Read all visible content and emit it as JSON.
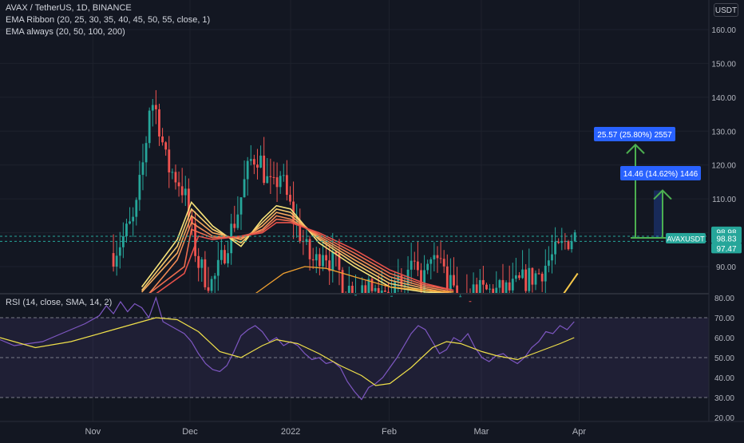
{
  "header": {
    "symbol_line": "AVAX / TetherUS, 1D, BINANCE",
    "indicator_1": "EMA Ribbon (20, 25, 30, 35, 40, 45, 50, 55, close, 1)",
    "indicator_2": "EMA always (20, 50, 100, 200)",
    "currency_button": "USDT"
  },
  "rsi_panel": {
    "label": "RSI (14, close, SMA, 14, 2)"
  },
  "colors": {
    "background": "#131722",
    "up": "#26a69a",
    "down": "#ef5350",
    "rsi": "#7e57c2",
    "rsi_ma": "#f0e04a",
    "measure_arrow": "#4caf50",
    "measure_label": "#2962ff"
  },
  "annotations": {
    "measure_long": "25.57 (25.80%) 2557",
    "measure_short": "14.46 (14.62%) 1446"
  },
  "price_labels": {
    "high_tag": "98.98",
    "symbol_tag": "AVAXUSDT",
    "last_tag": "98.83",
    "low_tag": "97.47"
  },
  "chart_data": [
    {
      "type": "candlestick",
      "y_ticks": [
        "160.00",
        "150.00",
        "140.00",
        "130.00",
        "120.00",
        "110.00",
        "100.00",
        "90.00"
      ],
      "ylim": [
        82,
        164
      ],
      "x_ticks": [
        "Nov",
        "Dec",
        "2022",
        "Feb",
        "Mar",
        "Apr"
      ],
      "x_tick_positions": [
        0.131,
        0.268,
        0.41,
        0.549,
        0.679,
        0.817
      ],
      "price_path": [
        [
          0.0,
          88
        ],
        [
          0.16,
          94
        ],
        [
          0.19,
          104
        ],
        [
          0.205,
          125
        ],
        [
          0.212,
          140
        ],
        [
          0.222,
          135
        ],
        [
          0.235,
          120
        ],
        [
          0.25,
          116
        ],
        [
          0.26,
          112
        ],
        [
          0.27,
          100
        ],
        [
          0.28,
          91
        ],
        [
          0.29,
          87
        ],
        [
          0.3,
          85
        ],
        [
          0.31,
          90
        ],
        [
          0.32,
          97
        ],
        [
          0.335,
          106
        ],
        [
          0.345,
          115
        ],
        [
          0.355,
          122
        ],
        [
          0.365,
          123
        ],
        [
          0.375,
          116
        ],
        [
          0.385,
          112
        ],
        [
          0.395,
          118
        ],
        [
          0.405,
          110
        ],
        [
          0.415,
          104
        ],
        [
          0.425,
          99
        ],
        [
          0.435,
          93
        ],
        [
          0.445,
          91
        ],
        [
          0.455,
          96
        ],
        [
          0.465,
          92
        ],
        [
          0.475,
          90
        ],
        [
          0.485,
          85
        ],
        [
          0.495,
          83
        ],
        [
          0.5,
          82
        ],
        [
          0.57,
          84
        ],
        [
          0.58,
          90
        ],
        [
          0.59,
          85
        ],
        [
          0.62,
          93
        ],
        [
          0.63,
          86
        ],
        [
          0.64,
          83
        ],
        [
          0.65,
          82
        ],
        [
          0.72,
          83
        ],
        [
          0.74,
          86
        ],
        [
          0.76,
          88
        ],
        [
          0.775,
          92
        ],
        [
          0.79,
          95
        ],
        [
          0.8,
          98
        ],
        [
          0.81,
          99
        ]
      ],
      "ema_ribbon_bands": [
        [
          [
            0.2,
            84
          ],
          [
            0.25,
            98
          ],
          [
            0.27,
            109
          ],
          [
            0.3,
            102
          ],
          [
            0.34,
            96
          ],
          [
            0.37,
            104
          ],
          [
            0.39,
            108
          ],
          [
            0.41,
            107
          ],
          [
            0.45,
            97
          ],
          [
            0.5,
            90
          ],
          [
            0.55,
            84
          ],
          [
            0.6,
            82.5
          ],
          [
            0.64,
            82
          ]
        ],
        [
          [
            0.2,
            83
          ],
          [
            0.25,
            96
          ],
          [
            0.27,
            107
          ],
          [
            0.3,
            101
          ],
          [
            0.34,
            97
          ],
          [
            0.37,
            103
          ],
          [
            0.39,
            107
          ],
          [
            0.41,
            106
          ],
          [
            0.45,
            98
          ],
          [
            0.5,
            91
          ],
          [
            0.55,
            85
          ],
          [
            0.6,
            83
          ],
          [
            0.64,
            82
          ]
        ],
        [
          [
            0.2,
            82.5
          ],
          [
            0.25,
            94
          ],
          [
            0.27,
            105
          ],
          [
            0.3,
            100
          ],
          [
            0.34,
            98
          ],
          [
            0.37,
            102
          ],
          [
            0.39,
            106
          ],
          [
            0.41,
            105
          ],
          [
            0.45,
            98.5
          ],
          [
            0.5,
            92
          ],
          [
            0.55,
            86
          ],
          [
            0.6,
            83.5
          ],
          [
            0.64,
            82
          ]
        ],
        [
          [
            0.21,
            82
          ],
          [
            0.25,
            92
          ],
          [
            0.27,
            103
          ],
          [
            0.3,
            99
          ],
          [
            0.34,
            98.5
          ],
          [
            0.37,
            101
          ],
          [
            0.39,
            105
          ],
          [
            0.41,
            104
          ],
          [
            0.45,
            99
          ],
          [
            0.5,
            93
          ],
          [
            0.55,
            87
          ],
          [
            0.6,
            84
          ],
          [
            0.64,
            82.5
          ]
        ],
        [
          [
            0.21,
            82
          ],
          [
            0.26,
            90
          ],
          [
            0.27,
            101
          ],
          [
            0.3,
            98.5
          ],
          [
            0.34,
            99
          ],
          [
            0.37,
            100.5
          ],
          [
            0.39,
            104
          ],
          [
            0.41,
            103.5
          ],
          [
            0.45,
            99.5
          ],
          [
            0.5,
            94
          ],
          [
            0.55,
            88
          ],
          [
            0.6,
            84.5
          ],
          [
            0.64,
            83
          ]
        ],
        [
          [
            0.22,
            82
          ],
          [
            0.26,
            88
          ],
          [
            0.28,
            99
          ],
          [
            0.3,
            98
          ],
          [
            0.34,
            99
          ],
          [
            0.37,
            100
          ],
          [
            0.39,
            103
          ],
          [
            0.41,
            103
          ],
          [
            0.45,
            100
          ],
          [
            0.5,
            95
          ],
          [
            0.55,
            89
          ],
          [
            0.6,
            85
          ],
          [
            0.64,
            83
          ]
        ]
      ],
      "ema_slow": [
        [
          0.36,
          82
        ],
        [
          0.4,
          88
        ],
        [
          0.43,
          90
        ],
        [
          0.46,
          89.5
        ],
        [
          0.5,
          87
        ],
        [
          0.55,
          84
        ],
        [
          0.6,
          83
        ],
        [
          0.64,
          82.5
        ]
      ],
      "ema_recent": [
        [
          0.795,
          82
        ],
        [
          0.805,
          85
        ],
        [
          0.815,
          88
        ]
      ]
    },
    {
      "type": "line",
      "y_ticks": [
        "80.00",
        "70.00",
        "60.00",
        "50.00",
        "40.00",
        "30.00",
        "20.00"
      ],
      "ylim": [
        18,
        82
      ],
      "bands": [
        70,
        30
      ],
      "mid_line": 50,
      "series": [
        {
          "values": [
            [
              0.0,
              59
            ],
            [
              0.02,
              56
            ],
            [
              0.04,
              57
            ],
            [
              0.06,
              58
            ],
            [
              0.08,
              61
            ],
            [
              0.1,
              64
            ],
            [
              0.12,
              67
            ],
            [
              0.14,
              71
            ],
            [
              0.15,
              76
            ],
            [
              0.16,
              72
            ],
            [
              0.17,
              78
            ],
            [
              0.18,
              73
            ],
            [
              0.19,
              77
            ],
            [
              0.2,
              75
            ],
            [
              0.21,
              70
            ],
            [
              0.22,
              80
            ],
            [
              0.23,
              68
            ],
            [
              0.24,
              66
            ],
            [
              0.25,
              64
            ],
            [
              0.26,
              62
            ],
            [
              0.27,
              58
            ],
            [
              0.28,
              52
            ],
            [
              0.29,
              47
            ],
            [
              0.3,
              44
            ],
            [
              0.31,
              43
            ],
            [
              0.32,
              46
            ],
            [
              0.33,
              53
            ],
            [
              0.34,
              61
            ],
            [
              0.35,
              64
            ],
            [
              0.36,
              66
            ],
            [
              0.37,
              63
            ],
            [
              0.38,
              58
            ],
            [
              0.39,
              60
            ],
            [
              0.4,
              56
            ],
            [
              0.41,
              58
            ],
            [
              0.42,
              56
            ],
            [
              0.43,
              52
            ],
            [
              0.44,
              49
            ],
            [
              0.45,
              50
            ],
            [
              0.46,
              47
            ],
            [
              0.47,
              48
            ],
            [
              0.48,
              45
            ],
            [
              0.49,
              38
            ],
            [
              0.5,
              33
            ],
            [
              0.51,
              29
            ],
            [
              0.52,
              35
            ],
            [
              0.53,
              37
            ],
            [
              0.54,
              40
            ],
            [
              0.55,
              45
            ],
            [
              0.56,
              50
            ],
            [
              0.57,
              56
            ],
            [
              0.58,
              62
            ],
            [
              0.59,
              66
            ],
            [
              0.6,
              64
            ],
            [
              0.61,
              58
            ],
            [
              0.62,
              52
            ],
            [
              0.63,
              54
            ],
            [
              0.64,
              60
            ],
            [
              0.65,
              58
            ],
            [
              0.66,
              62
            ],
            [
              0.67,
              55
            ],
            [
              0.68,
              50
            ],
            [
              0.69,
              48
            ],
            [
              0.7,
              51
            ],
            [
              0.71,
              52
            ],
            [
              0.72,
              49
            ],
            [
              0.73,
              47
            ],
            [
              0.74,
              50
            ],
            [
              0.75,
              55
            ],
            [
              0.76,
              58
            ],
            [
              0.77,
              63
            ],
            [
              0.78,
              62
            ],
            [
              0.79,
              66
            ],
            [
              0.8,
              64
            ],
            [
              0.81,
              68
            ]
          ]
        },
        {
          "values": [
            [
              0.0,
              60
            ],
            [
              0.05,
              55
            ],
            [
              0.1,
              58
            ],
            [
              0.15,
              63
            ],
            [
              0.2,
              68
            ],
            [
              0.22,
              70
            ],
            [
              0.25,
              69
            ],
            [
              0.28,
              63
            ],
            [
              0.31,
              53
            ],
            [
              0.34,
              50
            ],
            [
              0.37,
              56
            ],
            [
              0.39,
              59
            ],
            [
              0.42,
              57
            ],
            [
              0.45,
              52
            ],
            [
              0.48,
              46
            ],
            [
              0.51,
              41
            ],
            [
              0.53,
              36
            ],
            [
              0.55,
              37
            ],
            [
              0.58,
              45
            ],
            [
              0.61,
              55
            ],
            [
              0.63,
              58
            ],
            [
              0.65,
              57
            ],
            [
              0.68,
              53
            ],
            [
              0.7,
              51
            ],
            [
              0.73,
              49
            ],
            [
              0.76,
              53
            ],
            [
              0.79,
              57
            ],
            [
              0.81,
              60
            ]
          ]
        }
      ]
    }
  ]
}
